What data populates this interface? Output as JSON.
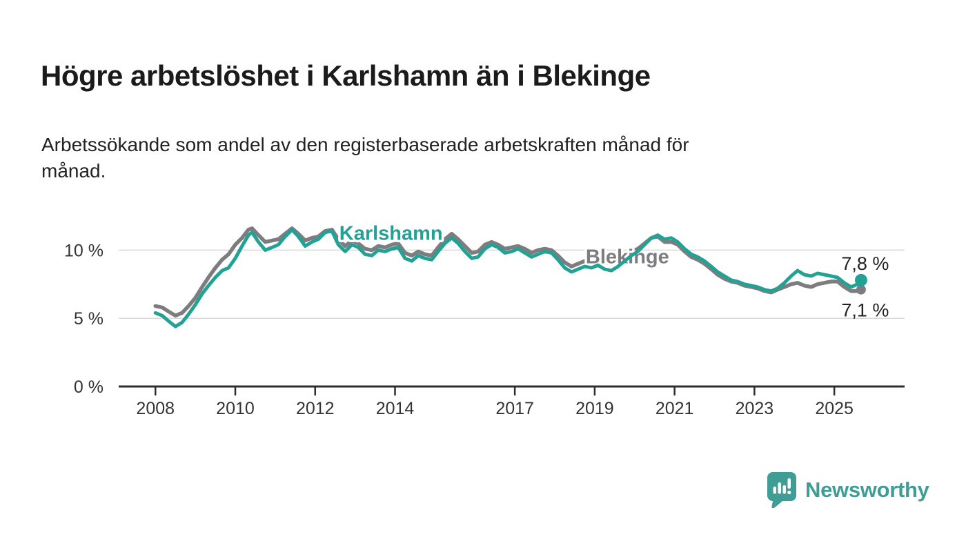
{
  "header": {
    "title": "Högre arbetslöshet i Karlshamn än i Blekinge",
    "subtitle_line1": "Arbetssökande som andel av den registerbaserade arbetskraften månad för",
    "subtitle_line2": "månad."
  },
  "footer": {
    "brand": "Newsworthy",
    "brand_color": "#3f9d95",
    "logo_icon": "speech-bubble-bar-chart-icon"
  },
  "chart_data": {
    "type": "line",
    "title": "Högre arbetslöshet i Karlshamn än i Blekinge",
    "subtitle": "Arbetssökande som andel av den registerbaserade arbetskraften månad för månad.",
    "unit": "%",
    "grid": true,
    "x_axis": {
      "lim": [
        2007.08,
        2026.76
      ],
      "ticks": [
        2008,
        2010,
        2012,
        2014,
        2017,
        2019,
        2021,
        2023,
        2025
      ],
      "tick_labels": [
        "2008",
        "2010",
        "2012",
        "2014",
        "2017",
        "2019",
        "2021",
        "2023",
        "2025"
      ]
    },
    "y_axis": {
      "lim": [
        0,
        13.16
      ],
      "ticks": [
        0,
        5,
        10
      ],
      "tick_labels": [
        "0 %",
        "5 %",
        "10 %"
      ]
    },
    "colors": {
      "axis": "#2d2d2d",
      "grid": "#d9d9d9",
      "tick_text": "#333333",
      "end_label_text": "#222222"
    },
    "series": [
      {
        "name": "Blekinge",
        "color": "#7d7d80",
        "line_width": 5.5,
        "dot_radius": 7,
        "end_label": "7,1 %",
        "end_label_side": "below",
        "label_pos": [
          2019.82,
          9.55
        ],
        "points": [
          [
            2008.0,
            5.9
          ],
          [
            2008.17,
            5.8
          ],
          [
            2008.33,
            5.5
          ],
          [
            2008.5,
            5.2
          ],
          [
            2008.67,
            5.4
          ],
          [
            2008.83,
            5.9
          ],
          [
            2009.0,
            6.5
          ],
          [
            2009.17,
            7.3
          ],
          [
            2009.33,
            8.0
          ],
          [
            2009.5,
            8.7
          ],
          [
            2009.67,
            9.3
          ],
          [
            2009.83,
            9.7
          ],
          [
            2010.0,
            10.4
          ],
          [
            2010.17,
            10.9
          ],
          [
            2010.33,
            11.5
          ],
          [
            2010.42,
            11.6
          ],
          [
            2010.58,
            11.1
          ],
          [
            2010.75,
            10.6
          ],
          [
            2010.92,
            10.7
          ],
          [
            2011.08,
            10.8
          ],
          [
            2011.25,
            11.2
          ],
          [
            2011.42,
            11.6
          ],
          [
            2011.58,
            11.2
          ],
          [
            2011.75,
            10.7
          ],
          [
            2011.92,
            10.9
          ],
          [
            2012.08,
            11.0
          ],
          [
            2012.25,
            11.4
          ],
          [
            2012.42,
            11.5
          ],
          [
            2012.58,
            10.8
          ],
          [
            2012.75,
            10.3
          ],
          [
            2012.92,
            10.7
          ],
          [
            2013.08,
            10.5
          ],
          [
            2013.25,
            10.1
          ],
          [
            2013.42,
            10.0
          ],
          [
            2013.58,
            10.3
          ],
          [
            2013.75,
            10.2
          ],
          [
            2013.92,
            10.4
          ],
          [
            2014.08,
            10.5
          ],
          [
            2014.25,
            9.8
          ],
          [
            2014.42,
            9.6
          ],
          [
            2014.58,
            9.9
          ],
          [
            2014.75,
            9.7
          ],
          [
            2014.92,
            9.6
          ],
          [
            2015.08,
            10.2
          ],
          [
            2015.25,
            10.8
          ],
          [
            2015.42,
            11.2
          ],
          [
            2015.58,
            10.8
          ],
          [
            2015.75,
            10.3
          ],
          [
            2015.92,
            9.8
          ],
          [
            2016.08,
            9.9
          ],
          [
            2016.25,
            10.4
          ],
          [
            2016.42,
            10.6
          ],
          [
            2016.58,
            10.4
          ],
          [
            2016.75,
            10.1
          ],
          [
            2016.92,
            10.2
          ],
          [
            2017.08,
            10.3
          ],
          [
            2017.25,
            10.1
          ],
          [
            2017.42,
            9.8
          ],
          [
            2017.58,
            10.0
          ],
          [
            2017.75,
            10.1
          ],
          [
            2017.92,
            10.0
          ],
          [
            2018.08,
            9.6
          ],
          [
            2018.25,
            9.1
          ],
          [
            2018.42,
            8.8
          ],
          [
            2018.58,
            9.0
          ],
          [
            2018.75,
            9.2
          ],
          [
            2018.92,
            9.1
          ],
          [
            2019.08,
            9.3
          ],
          [
            2019.25,
            9.1
          ],
          [
            2019.42,
            9.0
          ],
          [
            2019.58,
            9.2
          ],
          [
            2019.75,
            9.6
          ],
          [
            2019.92,
            9.9
          ],
          [
            2020.08,
            10.1
          ],
          [
            2020.25,
            10.5
          ],
          [
            2020.42,
            10.9
          ],
          [
            2020.58,
            11.0
          ],
          [
            2020.75,
            10.6
          ],
          [
            2020.92,
            10.6
          ],
          [
            2021.08,
            10.4
          ],
          [
            2021.25,
            9.9
          ],
          [
            2021.42,
            9.5
          ],
          [
            2021.58,
            9.3
          ],
          [
            2021.75,
            9.0
          ],
          [
            2021.92,
            8.6
          ],
          [
            2022.08,
            8.2
          ],
          [
            2022.25,
            7.9
          ],
          [
            2022.42,
            7.7
          ],
          [
            2022.58,
            7.6
          ],
          [
            2022.75,
            7.4
          ],
          [
            2022.92,
            7.3
          ],
          [
            2023.08,
            7.2
          ],
          [
            2023.25,
            7.0
          ],
          [
            2023.42,
            6.9
          ],
          [
            2023.58,
            7.1
          ],
          [
            2023.75,
            7.3
          ],
          [
            2023.92,
            7.5
          ],
          [
            2024.08,
            7.6
          ],
          [
            2024.25,
            7.4
          ],
          [
            2024.42,
            7.3
          ],
          [
            2024.58,
            7.5
          ],
          [
            2024.75,
            7.6
          ],
          [
            2024.92,
            7.7
          ],
          [
            2025.08,
            7.7
          ],
          [
            2025.25,
            7.3
          ],
          [
            2025.42,
            7.0
          ],
          [
            2025.58,
            7.0
          ],
          [
            2025.67,
            7.1
          ]
        ]
      },
      {
        "name": "Karlshamn",
        "color": "#22a295",
        "line_width": 5,
        "dot_radius": 9,
        "end_label": "7,8 %",
        "end_label_side": "above",
        "label_pos": [
          2013.9,
          11.25
        ],
        "points": [
          [
            2008.0,
            5.4
          ],
          [
            2008.17,
            5.2
          ],
          [
            2008.33,
            4.8
          ],
          [
            2008.5,
            4.4
          ],
          [
            2008.67,
            4.7
          ],
          [
            2008.83,
            5.3
          ],
          [
            2009.0,
            6.0
          ],
          [
            2009.17,
            6.8
          ],
          [
            2009.33,
            7.4
          ],
          [
            2009.5,
            8.0
          ],
          [
            2009.67,
            8.5
          ],
          [
            2009.83,
            8.7
          ],
          [
            2010.0,
            9.4
          ],
          [
            2010.17,
            10.3
          ],
          [
            2010.33,
            11.1
          ],
          [
            2010.42,
            11.3
          ],
          [
            2010.58,
            10.6
          ],
          [
            2010.75,
            10.0
          ],
          [
            2010.92,
            10.2
          ],
          [
            2011.08,
            10.4
          ],
          [
            2011.25,
            11.0
          ],
          [
            2011.42,
            11.5
          ],
          [
            2011.58,
            11.0
          ],
          [
            2011.75,
            10.3
          ],
          [
            2011.92,
            10.6
          ],
          [
            2012.08,
            10.8
          ],
          [
            2012.25,
            11.3
          ],
          [
            2012.42,
            11.4
          ],
          [
            2012.58,
            10.4
          ],
          [
            2012.75,
            9.9
          ],
          [
            2012.92,
            10.4
          ],
          [
            2013.08,
            10.2
          ],
          [
            2013.25,
            9.7
          ],
          [
            2013.42,
            9.6
          ],
          [
            2013.58,
            10.0
          ],
          [
            2013.75,
            9.9
          ],
          [
            2013.92,
            10.1
          ],
          [
            2014.08,
            10.2
          ],
          [
            2014.25,
            9.4
          ],
          [
            2014.42,
            9.2
          ],
          [
            2014.58,
            9.6
          ],
          [
            2014.75,
            9.4
          ],
          [
            2014.92,
            9.3
          ],
          [
            2015.08,
            9.9
          ],
          [
            2015.25,
            10.5
          ],
          [
            2015.42,
            10.9
          ],
          [
            2015.58,
            10.5
          ],
          [
            2015.75,
            9.9
          ],
          [
            2015.92,
            9.4
          ],
          [
            2016.08,
            9.5
          ],
          [
            2016.25,
            10.1
          ],
          [
            2016.42,
            10.4
          ],
          [
            2016.58,
            10.2
          ],
          [
            2016.75,
            9.8
          ],
          [
            2016.92,
            9.9
          ],
          [
            2017.08,
            10.1
          ],
          [
            2017.25,
            9.8
          ],
          [
            2017.42,
            9.5
          ],
          [
            2017.58,
            9.7
          ],
          [
            2017.75,
            9.9
          ],
          [
            2017.92,
            9.8
          ],
          [
            2018.08,
            9.3
          ],
          [
            2018.25,
            8.7
          ],
          [
            2018.42,
            8.4
          ],
          [
            2018.58,
            8.6
          ],
          [
            2018.75,
            8.8
          ],
          [
            2018.92,
            8.7
          ],
          [
            2019.08,
            8.9
          ],
          [
            2019.25,
            8.6
          ],
          [
            2019.42,
            8.5
          ],
          [
            2019.58,
            8.8
          ],
          [
            2019.75,
            9.2
          ],
          [
            2019.92,
            9.6
          ],
          [
            2020.08,
            9.9
          ],
          [
            2020.25,
            10.4
          ],
          [
            2020.42,
            10.9
          ],
          [
            2020.58,
            11.1
          ],
          [
            2020.75,
            10.8
          ],
          [
            2020.92,
            10.9
          ],
          [
            2021.08,
            10.6
          ],
          [
            2021.25,
            10.1
          ],
          [
            2021.42,
            9.7
          ],
          [
            2021.58,
            9.5
          ],
          [
            2021.75,
            9.2
          ],
          [
            2021.92,
            8.8
          ],
          [
            2022.08,
            8.4
          ],
          [
            2022.25,
            8.1
          ],
          [
            2022.42,
            7.8
          ],
          [
            2022.58,
            7.7
          ],
          [
            2022.75,
            7.5
          ],
          [
            2022.92,
            7.4
          ],
          [
            2023.08,
            7.3
          ],
          [
            2023.25,
            7.1
          ],
          [
            2023.42,
            7.0
          ],
          [
            2023.58,
            7.2
          ],
          [
            2023.75,
            7.6
          ],
          [
            2023.92,
            8.1
          ],
          [
            2024.08,
            8.5
          ],
          [
            2024.25,
            8.2
          ],
          [
            2024.42,
            8.1
          ],
          [
            2024.58,
            8.3
          ],
          [
            2024.75,
            8.2
          ],
          [
            2024.92,
            8.1
          ],
          [
            2025.08,
            8.0
          ],
          [
            2025.25,
            7.6
          ],
          [
            2025.42,
            7.3
          ],
          [
            2025.58,
            7.5
          ],
          [
            2025.67,
            7.8
          ]
        ]
      }
    ]
  }
}
